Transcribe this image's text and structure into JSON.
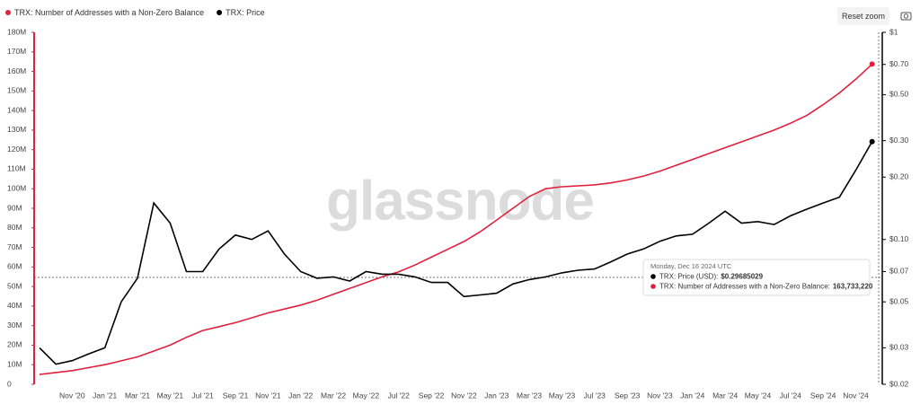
{
  "chart_data": {
    "type": "line",
    "watermark": "glassnode",
    "reset_label": "Reset zoom",
    "categories": [
      null,
      null,
      "Nov '20",
      null,
      "Jan '21",
      null,
      "Mar '21",
      null,
      "May '21",
      null,
      "Jul '21",
      null,
      "Sep '21",
      null,
      "Nov '21",
      null,
      "Jan '22",
      null,
      "Mar '22",
      null,
      "May '22",
      null,
      "Jul '22",
      null,
      "Sep '22",
      null,
      "Nov '22",
      null,
      "Jan '23",
      null,
      "Mar '23",
      null,
      "May '23",
      null,
      "Jul '23",
      null,
      "Sep '23",
      null,
      "Nov '23",
      null,
      "Jan '24",
      null,
      "Mar '24",
      null,
      "May '24",
      null,
      "Jul '24",
      null,
      "Sep '24",
      null,
      "Nov '24",
      null
    ],
    "series": [
      {
        "name": "TRX: Number of Addresses with a Non-Zero Balance",
        "color": "#e0213e",
        "axis": "y",
        "values": [
          5000000,
          6000000,
          7000000,
          8500000,
          10000000,
          12000000,
          14000000,
          17000000,
          20000000,
          24000000,
          27500000,
          29500000,
          31500000,
          34000000,
          36500000,
          38500000,
          40500000,
          43000000,
          46000000,
          49000000,
          52000000,
          55000000,
          57500000,
          61000000,
          65000000,
          69000000,
          73000000,
          78000000,
          84000000,
          90000000,
          96000000,
          100000000,
          101000000,
          101500000,
          102000000,
          103000000,
          104500000,
          106500000,
          109000000,
          112000000,
          115000000,
          118000000,
          121000000,
          124000000,
          127000000,
          130000000,
          133500000,
          137500000,
          143000000,
          149000000,
          156000000,
          163733220
        ]
      },
      {
        "name": "TRX: Price",
        "color": "#000000",
        "axis": "y2",
        "values": [
          0.03,
          0.025,
          0.026,
          0.028,
          0.03,
          0.05,
          0.065,
          0.15,
          0.12,
          0.07,
          0.07,
          0.09,
          0.105,
          0.1,
          0.11,
          0.085,
          0.07,
          0.065,
          0.066,
          0.063,
          0.07,
          0.068,
          0.068,
          0.066,
          0.062,
          0.062,
          0.053,
          0.054,
          0.055,
          0.061,
          0.064,
          0.066,
          0.069,
          0.071,
          0.072,
          0.078,
          0.085,
          0.09,
          0.098,
          0.104,
          0.106,
          0.12,
          0.137,
          0.12,
          0.122,
          0.118,
          0.13,
          0.14,
          0.15,
          0.16,
          0.216,
          0.29685029
        ]
      }
    ],
    "ylim": [
      0,
      180000000
    ],
    "yticks": [
      0,
      {
        "value": 10000000,
        "label": "10M"
      },
      {
        "value": 20000000,
        "label": "20M"
      },
      {
        "value": 30000000,
        "label": "30M"
      },
      {
        "value": 40000000,
        "label": "40M"
      },
      {
        "value": 50000000,
        "label": "50M"
      },
      {
        "value": 60000000,
        "label": "60M"
      },
      {
        "value": 70000000,
        "label": "70M"
      },
      {
        "value": 80000000,
        "label": "80M"
      },
      {
        "value": 90000000,
        "label": "90M"
      },
      {
        "value": 100000000,
        "label": "100M"
      },
      {
        "value": 110000000,
        "label": "110M"
      },
      {
        "value": 120000000,
        "label": "120M"
      },
      {
        "value": 130000000,
        "label": "130M"
      },
      {
        "value": 140000000,
        "label": "140M"
      },
      {
        "value": 150000000,
        "label": "150M"
      },
      {
        "value": 160000000,
        "label": "160M"
      },
      {
        "value": 170000000,
        "label": "170M"
      },
      {
        "value": 180000000,
        "label": "180M"
      }
    ],
    "y2scale": "log",
    "y2lim": [
      0.02,
      1
    ],
    "y2ticks": [
      {
        "value": 0.02,
        "label": "$0.02"
      },
      {
        "value": 0.03,
        "label": "$0.03"
      },
      {
        "value": 0.05,
        "label": "$0.05"
      },
      {
        "value": 0.07,
        "label": "$0.07"
      },
      {
        "value": 0.1,
        "label": "$0.10"
      },
      {
        "value": 0.2,
        "label": "$0.20"
      },
      {
        "value": 0.3,
        "label": "$0.30"
      },
      {
        "value": 0.5,
        "label": "$0.50"
      },
      {
        "value": 0.7,
        "label": "$0.70"
      },
      {
        "value": 1,
        "label": "$1"
      }
    ],
    "tooltip": {
      "date": "Monday, Dec 16 2024 UTC",
      "rows": [
        {
          "label": "TRX: Price (USD):",
          "value": "$0.29685029",
          "color": "#000000"
        },
        {
          "label": "TRX: Number of Addresses with a Non-Zero Balance:",
          "value": "163,733,220",
          "color": "#e0213e"
        }
      ]
    }
  }
}
